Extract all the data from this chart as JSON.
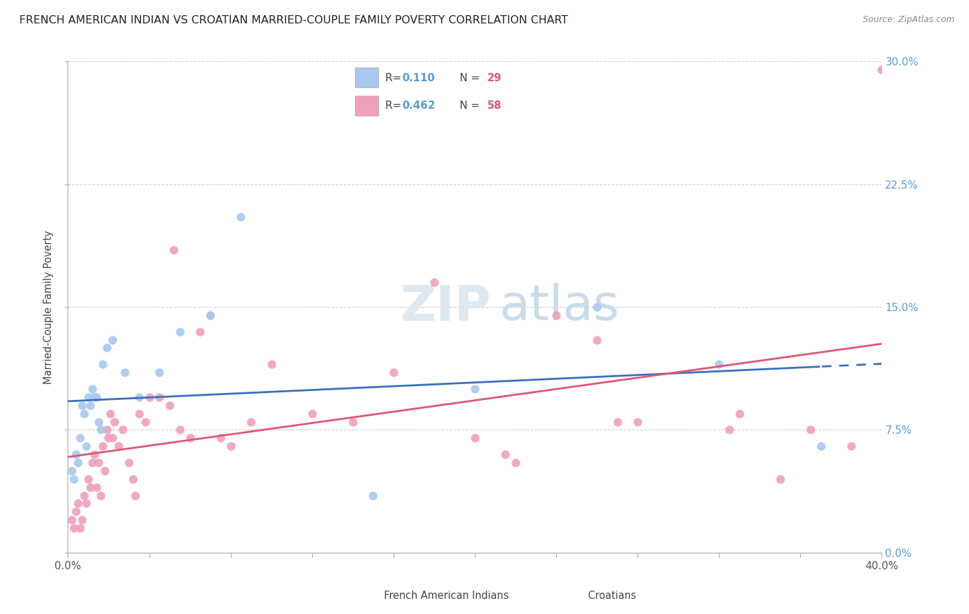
{
  "title": "FRENCH AMERICAN INDIAN VS CROATIAN MARRIED-COUPLE FAMILY POVERTY CORRELATION CHART",
  "source": "Source: ZipAtlas.com",
  "ylabel": "Married-Couple Family Poverty",
  "xlim": [
    0.0,
    40.0
  ],
  "ylim": [
    0.0,
    30.0
  ],
  "yticks": [
    0.0,
    7.5,
    15.0,
    22.5,
    30.0
  ],
  "xticks": [
    0.0,
    4.0,
    8.0,
    12.0,
    16.0,
    20.0,
    24.0,
    28.0,
    32.0,
    36.0,
    40.0
  ],
  "blue_color": "#a8c8f0",
  "pink_color": "#f0a0b8",
  "trend_blue": "#3a6fbd",
  "trend_pink": "#e05575",
  "watermark_zip": "ZIP",
  "watermark_atlas": "atlas",
  "french_x": [
    0.2,
    0.3,
    0.4,
    0.5,
    0.6,
    0.7,
    0.8,
    0.9,
    1.0,
    1.1,
    1.2,
    1.3,
    1.4,
    1.5,
    1.6,
    1.7,
    1.9,
    2.2,
    2.8,
    3.5,
    4.5,
    5.5,
    7.0,
    8.5,
    15.0,
    20.0,
    26.0,
    32.0,
    37.0
  ],
  "french_y": [
    5.0,
    4.5,
    6.0,
    5.5,
    7.0,
    9.0,
    8.5,
    6.5,
    9.5,
    9.0,
    10.0,
    9.5,
    9.5,
    8.0,
    7.5,
    11.5,
    12.5,
    13.0,
    11.0,
    9.5,
    11.0,
    13.5,
    14.5,
    20.5,
    3.5,
    10.0,
    15.0,
    11.5,
    6.5
  ],
  "croatian_x": [
    0.2,
    0.3,
    0.4,
    0.5,
    0.6,
    0.7,
    0.8,
    0.9,
    1.0,
    1.1,
    1.2,
    1.3,
    1.4,
    1.5,
    1.6,
    1.7,
    1.8,
    1.9,
    2.0,
    2.1,
    2.2,
    2.3,
    2.5,
    2.7,
    3.0,
    3.2,
    3.5,
    3.8,
    4.0,
    4.5,
    5.0,
    5.5,
    6.0,
    6.5,
    7.0,
    8.0,
    9.0,
    10.0,
    12.0,
    14.0,
    16.0,
    18.0,
    20.0,
    22.0,
    24.0,
    26.0,
    28.0,
    32.5,
    35.0,
    36.5,
    38.5,
    40.0,
    3.3,
    5.2,
    7.5,
    21.5,
    27.0,
    33.0
  ],
  "croatian_y": [
    2.0,
    1.5,
    2.5,
    3.0,
    1.5,
    2.0,
    3.5,
    3.0,
    4.5,
    4.0,
    5.5,
    6.0,
    4.0,
    5.5,
    3.5,
    6.5,
    5.0,
    7.5,
    7.0,
    8.5,
    7.0,
    8.0,
    6.5,
    7.5,
    5.5,
    4.5,
    8.5,
    8.0,
    9.5,
    9.5,
    9.0,
    7.5,
    7.0,
    13.5,
    14.5,
    6.5,
    8.0,
    11.5,
    8.5,
    8.0,
    11.0,
    16.5,
    7.0,
    5.5,
    14.5,
    13.0,
    8.0,
    7.5,
    4.5,
    7.5,
    6.5,
    29.5,
    3.5,
    18.5,
    7.0,
    6.0,
    8.0,
    8.5
  ]
}
